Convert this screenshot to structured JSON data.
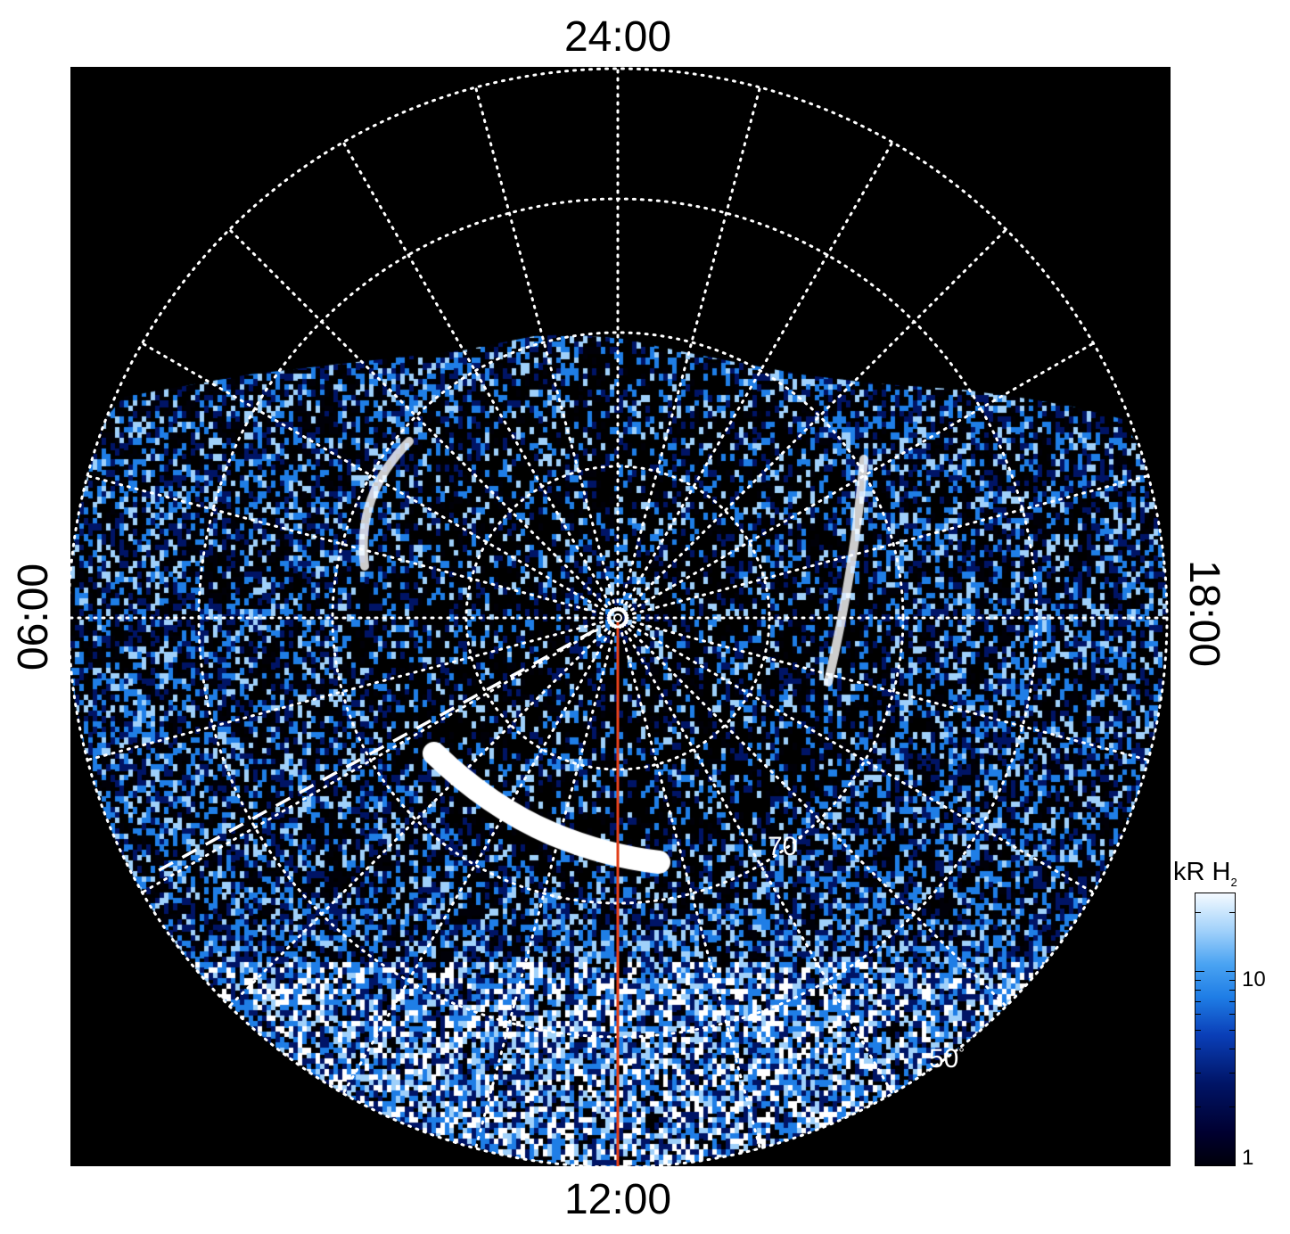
{
  "local_time_labels": {
    "top": "24:00",
    "bottom": "12:00",
    "left": "06:00",
    "right": "18:00"
  },
  "latitude_labels": {
    "inner": "70",
    "outer": "50",
    "degree_symbol": "°"
  },
  "colorbar": {
    "title_main": "kR H",
    "title_subscript": "2",
    "scale": "log",
    "range": [
      1,
      25
    ],
    "tick_labels": [
      "10",
      "1"
    ],
    "colors": [
      "#000008",
      "#001466",
      "#1f7ee6",
      "#9fd0fa",
      "#ffffff"
    ]
  },
  "map": {
    "projection": "polar",
    "background_color": "#000000",
    "grid_color": "#ffffff",
    "meridian_line_color": "#e2401b",
    "bright_arc_color": "#ffffff"
  }
}
